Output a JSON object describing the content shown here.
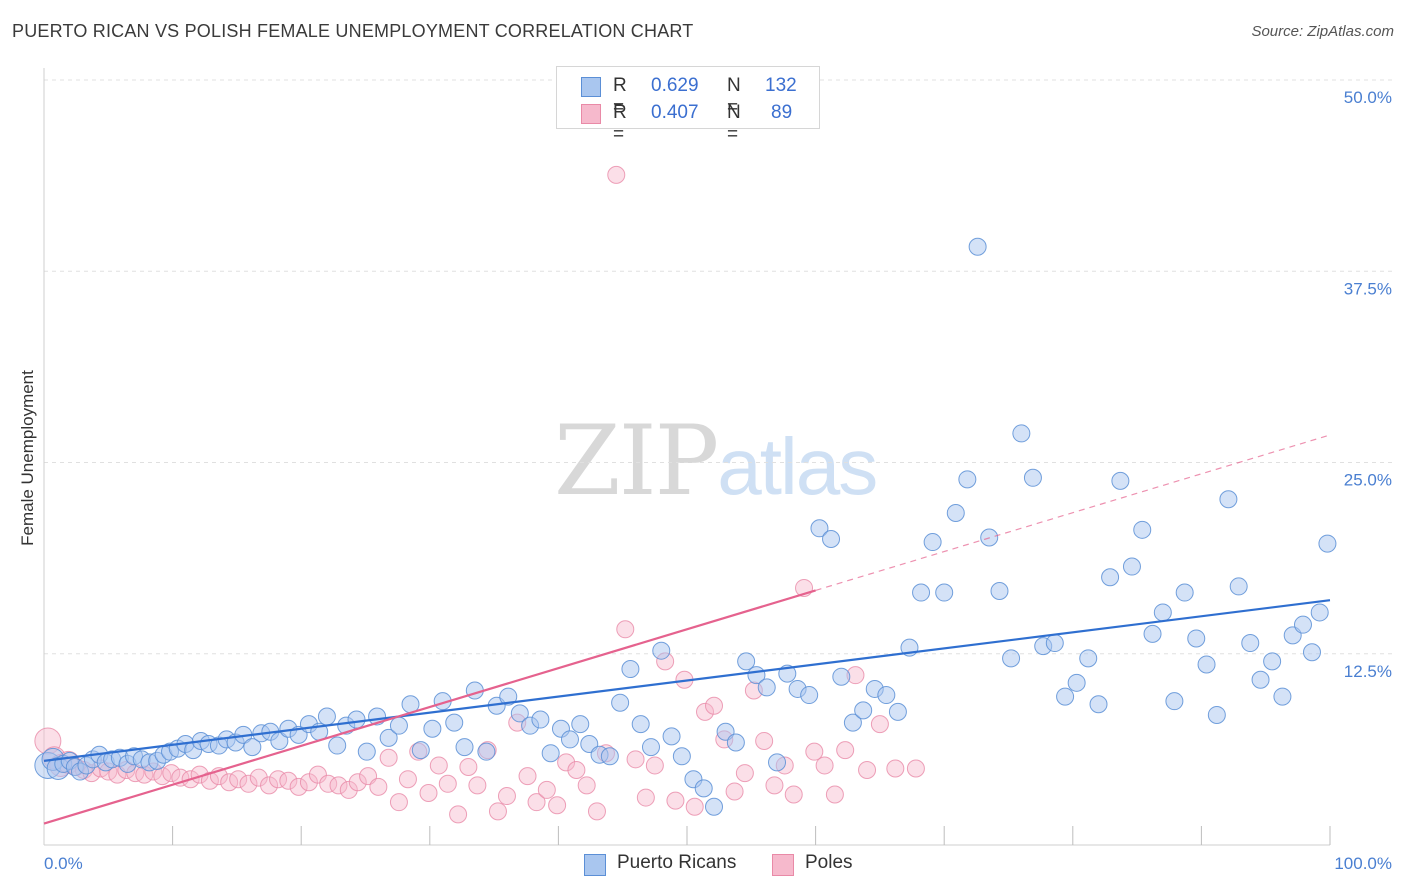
{
  "header": {
    "title": "PUERTO RICAN VS POLISH FEMALE UNEMPLOYMENT CORRELATION CHART",
    "source": "Source: ZipAtlas.com"
  },
  "watermark": {
    "zip": "ZIP",
    "atlas": "atlas"
  },
  "legend_top": {
    "rows": [
      {
        "r_label": "R =",
        "r_value": "0.629",
        "n_label": "N =",
        "n_value": "132"
      },
      {
        "r_label": "R =",
        "r_value": "0.407",
        "n_label": "N =",
        "n_value": "89"
      }
    ]
  },
  "legend_bottom": {
    "items": [
      "Puerto Ricans",
      "Poles"
    ]
  },
  "colors": {
    "blue_fill": "#a9c6ef",
    "blue_stroke": "#5b8fd6",
    "blue_line": "#2f6fd0",
    "pink_fill": "#f6b9cc",
    "pink_stroke": "#e98aa7",
    "pink_line": "#e5628e",
    "grid": "#e0e0e0",
    "tick_text": "#4a7fd1"
  },
  "chart_data": {
    "type": "scatter",
    "title": "PUERTO RICAN VS POLISH FEMALE UNEMPLOYMENT CORRELATION CHART",
    "xlabel": "",
    "ylabel": "Female Unemployment",
    "xlim": [
      0,
      100
    ],
    "ylim": [
      0,
      50
    ],
    "x_tick_labels": [
      "0.0%",
      "100.0%"
    ],
    "y_ticks": [
      12.5,
      25.0,
      37.5,
      50.0
    ],
    "y_tick_labels": [
      "12.5%",
      "25.0%",
      "37.5%",
      "50.0%"
    ],
    "grid": true,
    "legend_position": "bottom",
    "series": [
      {
        "name": "Puerto Ricans",
        "r": 0.629,
        "n": 132,
        "trend": {
          "x": [
            0,
            100
          ],
          "y": [
            5.5,
            16.0
          ],
          "dashed_from": null
        },
        "points": [
          [
            0.3,
            5.2
          ],
          [
            0.7,
            5.6
          ],
          [
            1.1,
            5.0
          ],
          [
            1.5,
            5.3
          ],
          [
            2.0,
            5.5
          ],
          [
            2.4,
            5.1
          ],
          [
            2.8,
            4.8
          ],
          [
            3.3,
            5.2
          ],
          [
            3.8,
            5.6
          ],
          [
            4.3,
            5.9
          ],
          [
            4.8,
            5.4
          ],
          [
            5.3,
            5.6
          ],
          [
            5.9,
            5.7
          ],
          [
            6.5,
            5.3
          ],
          [
            7.0,
            5.8
          ],
          [
            7.6,
            5.6
          ],
          [
            8.2,
            5.4
          ],
          [
            8.8,
            5.5
          ],
          [
            9.3,
            5.9
          ],
          [
            9.8,
            6.1
          ],
          [
            10.4,
            6.3
          ],
          [
            11.0,
            6.6
          ],
          [
            11.6,
            6.2
          ],
          [
            12.2,
            6.8
          ],
          [
            12.8,
            6.6
          ],
          [
            13.6,
            6.5
          ],
          [
            14.2,
            6.9
          ],
          [
            14.9,
            6.7
          ],
          [
            15.5,
            7.2
          ],
          [
            16.2,
            6.4
          ],
          [
            16.9,
            7.3
          ],
          [
            17.6,
            7.4
          ],
          [
            18.3,
            6.8
          ],
          [
            19.0,
            7.6
          ],
          [
            19.8,
            7.2
          ],
          [
            20.6,
            7.9
          ],
          [
            21.4,
            7.4
          ],
          [
            22.0,
            8.4
          ],
          [
            22.8,
            6.5
          ],
          [
            23.5,
            7.8
          ],
          [
            24.3,
            8.2
          ],
          [
            25.1,
            6.1
          ],
          [
            25.9,
            8.4
          ],
          [
            26.8,
            7.0
          ],
          [
            27.6,
            7.8
          ],
          [
            28.5,
            9.2
          ],
          [
            29.3,
            6.2
          ],
          [
            30.2,
            7.6
          ],
          [
            31.0,
            9.4
          ],
          [
            31.9,
            8.0
          ],
          [
            32.7,
            6.4
          ],
          [
            33.5,
            10.1
          ],
          [
            34.4,
            6.1
          ],
          [
            35.2,
            9.1
          ],
          [
            36.1,
            9.7
          ],
          [
            37.0,
            8.6
          ],
          [
            37.8,
            7.8
          ],
          [
            38.6,
            8.2
          ],
          [
            39.4,
            6.0
          ],
          [
            40.2,
            7.6
          ],
          [
            40.9,
            6.9
          ],
          [
            41.7,
            7.9
          ],
          [
            42.4,
            6.6
          ],
          [
            43.2,
            5.9
          ],
          [
            44.0,
            5.8
          ],
          [
            44.8,
            9.3
          ],
          [
            45.6,
            11.5
          ],
          [
            46.4,
            7.9
          ],
          [
            47.2,
            6.4
          ],
          [
            48.0,
            12.7
          ],
          [
            48.8,
            7.1
          ],
          [
            49.6,
            5.8
          ],
          [
            50.5,
            4.3
          ],
          [
            51.3,
            3.7
          ],
          [
            52.1,
            2.5
          ],
          [
            53.0,
            7.4
          ],
          [
            53.8,
            6.7
          ],
          [
            54.6,
            12.0
          ],
          [
            55.4,
            11.1
          ],
          [
            56.2,
            10.3
          ],
          [
            57.0,
            5.4
          ],
          [
            57.8,
            11.2
          ],
          [
            58.6,
            10.2
          ],
          [
            59.5,
            9.8
          ],
          [
            60.3,
            20.7
          ],
          [
            61.2,
            20.0
          ],
          [
            62.0,
            11.0
          ],
          [
            62.9,
            8.0
          ],
          [
            63.7,
            8.8
          ],
          [
            64.6,
            10.2
          ],
          [
            65.5,
            9.8
          ],
          [
            66.4,
            8.7
          ],
          [
            67.3,
            12.9
          ],
          [
            68.2,
            16.5
          ],
          [
            69.1,
            19.8
          ],
          [
            70.0,
            16.5
          ],
          [
            70.9,
            21.7
          ],
          [
            71.8,
            23.9
          ],
          [
            72.6,
            39.1
          ],
          [
            73.5,
            20.1
          ],
          [
            74.3,
            16.6
          ],
          [
            75.2,
            12.2
          ],
          [
            76.0,
            26.9
          ],
          [
            76.9,
            24.0
          ],
          [
            77.7,
            13.0
          ],
          [
            78.6,
            13.2
          ],
          [
            79.4,
            9.7
          ],
          [
            80.3,
            10.6
          ],
          [
            81.2,
            12.2
          ],
          [
            82.0,
            9.2
          ],
          [
            82.9,
            17.5
          ],
          [
            83.7,
            23.8
          ],
          [
            84.6,
            18.2
          ],
          [
            85.4,
            20.6
          ],
          [
            86.2,
            13.8
          ],
          [
            87.0,
            15.2
          ],
          [
            87.9,
            9.4
          ],
          [
            88.7,
            16.5
          ],
          [
            89.6,
            13.5
          ],
          [
            90.4,
            11.8
          ],
          [
            91.2,
            8.5
          ],
          [
            92.1,
            22.6
          ],
          [
            92.9,
            16.9
          ],
          [
            93.8,
            13.2
          ],
          [
            94.6,
            10.8
          ],
          [
            95.5,
            12.0
          ],
          [
            96.3,
            9.7
          ],
          [
            97.1,
            13.7
          ],
          [
            97.9,
            14.4
          ],
          [
            98.6,
            12.6
          ],
          [
            99.2,
            15.2
          ],
          [
            99.8,
            19.7
          ]
        ]
      },
      {
        "name": "Poles",
        "r": 0.407,
        "n": 89,
        "trend": {
          "x": [
            0,
            100
          ],
          "y": [
            1.4,
            26.8
          ],
          "solid_until_x": 60
        },
        "points": [
          [
            0.3,
            6.8
          ],
          [
            0.8,
            5.7
          ],
          [
            1.3,
            5.2
          ],
          [
            1.9,
            5.4
          ],
          [
            2.5,
            5.1
          ],
          [
            3.1,
            4.9
          ],
          [
            3.7,
            4.7
          ],
          [
            4.4,
            5.0
          ],
          [
            5.0,
            4.8
          ],
          [
            5.7,
            4.6
          ],
          [
            6.4,
            4.9
          ],
          [
            7.1,
            4.7
          ],
          [
            7.8,
            4.6
          ],
          [
            8.5,
            4.8
          ],
          [
            9.2,
            4.5
          ],
          [
            9.9,
            4.7
          ],
          [
            10.6,
            4.4
          ],
          [
            11.4,
            4.3
          ],
          [
            12.1,
            4.6
          ],
          [
            12.9,
            4.2
          ],
          [
            13.6,
            4.5
          ],
          [
            14.4,
            4.1
          ],
          [
            15.1,
            4.3
          ],
          [
            15.9,
            4.0
          ],
          [
            16.7,
            4.4
          ],
          [
            17.5,
            3.9
          ],
          [
            18.2,
            4.3
          ],
          [
            19.0,
            4.2
          ],
          [
            19.8,
            3.8
          ],
          [
            20.6,
            4.1
          ],
          [
            21.3,
            4.6
          ],
          [
            22.1,
            4.0
          ],
          [
            22.9,
            3.9
          ],
          [
            23.7,
            3.6
          ],
          [
            24.4,
            4.1
          ],
          [
            25.2,
            4.5
          ],
          [
            26.0,
            3.8
          ],
          [
            26.8,
            5.7
          ],
          [
            27.6,
            2.8
          ],
          [
            28.3,
            4.3
          ],
          [
            29.1,
            6.1
          ],
          [
            29.9,
            3.4
          ],
          [
            30.7,
            5.2
          ],
          [
            31.4,
            4.0
          ],
          [
            32.2,
            2.0
          ],
          [
            33.0,
            5.1
          ],
          [
            33.7,
            3.9
          ],
          [
            34.5,
            6.2
          ],
          [
            35.3,
            2.2
          ],
          [
            36.0,
            3.2
          ],
          [
            36.8,
            8.0
          ],
          [
            37.6,
            4.5
          ],
          [
            38.3,
            2.8
          ],
          [
            39.1,
            3.6
          ],
          [
            39.9,
            2.6
          ],
          [
            40.6,
            5.4
          ],
          [
            41.4,
            4.9
          ],
          [
            42.2,
            3.9
          ],
          [
            43.0,
            2.2
          ],
          [
            43.7,
            6.0
          ],
          [
            44.5,
            43.8
          ],
          [
            45.2,
            14.1
          ],
          [
            46.0,
            5.6
          ],
          [
            46.8,
            3.1
          ],
          [
            47.5,
            5.2
          ],
          [
            48.3,
            12.0
          ],
          [
            49.1,
            2.9
          ],
          [
            49.8,
            10.8
          ],
          [
            50.6,
            2.5
          ],
          [
            51.4,
            8.7
          ],
          [
            52.1,
            9.1
          ],
          [
            52.9,
            6.9
          ],
          [
            53.7,
            3.5
          ],
          [
            54.5,
            4.7
          ],
          [
            55.2,
            10.1
          ],
          [
            56.0,
            6.8
          ],
          [
            56.8,
            3.9
          ],
          [
            57.6,
            5.2
          ],
          [
            58.3,
            3.3
          ],
          [
            59.1,
            16.8
          ],
          [
            59.9,
            6.1
          ],
          [
            60.7,
            5.2
          ],
          [
            61.5,
            3.3
          ],
          [
            62.3,
            6.2
          ],
          [
            63.1,
            11.1
          ],
          [
            64.0,
            4.9
          ],
          [
            65.0,
            7.9
          ],
          [
            66.2,
            5.0
          ],
          [
            67.8,
            5.0
          ]
        ]
      }
    ]
  }
}
